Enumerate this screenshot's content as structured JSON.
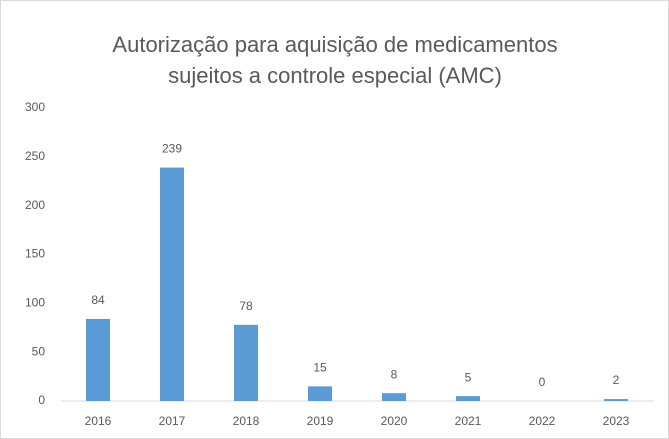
{
  "chart_data": {
    "type": "bar",
    "title": "Autorização para aquisição de medicamentos sujeitos a controle especial (AMC)",
    "categories": [
      "2016",
      "2017",
      "2018",
      "2019",
      "2020",
      "2021",
      "2022",
      "2023"
    ],
    "values": [
      84,
      239,
      78,
      15,
      8,
      5,
      0,
      2
    ],
    "color": "#5b9bd5",
    "ylim": [
      0,
      300
    ],
    "yticks": [
      0,
      50,
      100,
      150,
      200,
      250,
      300
    ],
    "grid": false
  }
}
